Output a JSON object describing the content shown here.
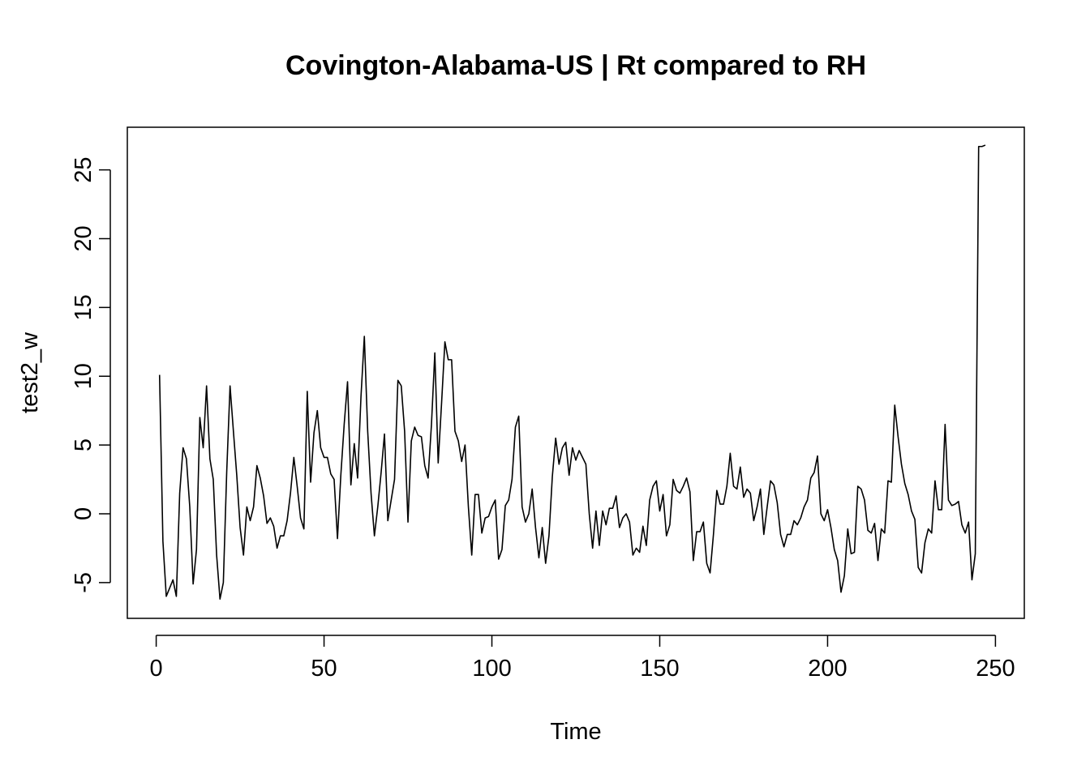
{
  "chart_data": {
    "type": "line",
    "title": "Covington-Alabama-US | Rt compared to RH",
    "xlabel": "Time",
    "ylabel": "test2_w",
    "xlim": [
      -8.6,
      258.6
    ],
    "ylim": [
      -7.6,
      28.1
    ],
    "x_ticks": [
      0,
      50,
      100,
      150,
      200,
      250
    ],
    "y_ticks": [
      -5,
      0,
      5,
      10,
      15,
      20,
      25
    ],
    "grid": false,
    "legend": "none",
    "line_color": "#000000",
    "series": [
      {
        "x_start": 1,
        "values": [
          10.1,
          -2.0,
          -6.0,
          -5.4,
          -4.8,
          -6.0,
          1.5,
          4.8,
          4.0,
          0.5,
          -5.1,
          -2.6,
          7.0,
          4.8,
          9.3,
          4.0,
          2.5,
          -3.0,
          -6.2,
          -5.0,
          3.0,
          9.3,
          6.0,
          2.8,
          -1.0,
          -3.0,
          0.5,
          -0.5,
          0.5,
          3.5,
          2.6,
          1.3,
          -0.7,
          -0.3,
          -0.9,
          -2.5,
          -1.6,
          -1.6,
          -0.5,
          1.5,
          4.1,
          2.0,
          -0.3,
          -1.1,
          8.9,
          2.3,
          5.9,
          7.5,
          4.8,
          4.1,
          4.1,
          2.9,
          2.5,
          -1.8,
          2.8,
          6.5,
          9.6,
          2.1,
          5.1,
          2.6,
          8.5,
          12.9,
          6.0,
          1.5,
          -1.6,
          0.5,
          3.0,
          5.8,
          -0.5,
          1.0,
          2.5,
          9.7,
          9.3,
          6.0,
          -0.6,
          5.3,
          6.3,
          5.7,
          5.6,
          3.5,
          2.6,
          6.5,
          11.7,
          3.7,
          8.0,
          12.5,
          11.2,
          11.2,
          6.0,
          5.3,
          3.8,
          5.0,
          0.5,
          -3.0,
          1.4,
          1.4,
          -1.4,
          -0.3,
          -0.2,
          0.5,
          1.0,
          -3.3,
          -2.6,
          0.6,
          1.0,
          2.5,
          6.3,
          7.1,
          0.5,
          -0.6,
          0.0,
          1.8,
          -1.0,
          -3.2,
          -1.0,
          -3.6,
          -1.6,
          2.7,
          5.5,
          3.6,
          4.8,
          5.2,
          2.8,
          4.8,
          3.9,
          4.6,
          4.1,
          3.6,
          0.0,
          -2.5,
          0.2,
          -2.3,
          0.2,
          -0.8,
          0.4,
          0.4,
          1.3,
          -1.0,
          -0.3,
          0.0,
          -0.6,
          -3.0,
          -2.5,
          -2.8,
          -0.9,
          -2.3,
          1.0,
          2.0,
          2.4,
          0.2,
          1.4,
          -1.6,
          -0.8,
          2.5,
          1.7,
          1.5,
          2.0,
          2.6,
          1.6,
          -3.4,
          -1.3,
          -1.3,
          -0.6,
          -3.6,
          -4.3,
          -1.5,
          1.7,
          0.7,
          0.7,
          2.0,
          4.4,
          2.0,
          1.8,
          3.4,
          1.2,
          1.8,
          1.5,
          -0.5,
          0.5,
          1.8,
          -1.5,
          0.5,
          2.4,
          2.1,
          0.8,
          -1.5,
          -2.4,
          -1.5,
          -1.5,
          -0.5,
          -0.8,
          -0.3,
          0.5,
          1.0,
          2.6,
          3.0,
          4.2,
          0.0,
          -0.5,
          0.3,
          -1.0,
          -2.6,
          -3.4,
          -5.7,
          -4.5,
          -1.1,
          -2.9,
          -2.8,
          2.0,
          1.8,
          1.0,
          -1.2,
          -1.4,
          -0.7,
          -3.4,
          -1.1,
          -1.4,
          2.4,
          2.3,
          7.9,
          5.6,
          3.6,
          2.2,
          1.4,
          0.2,
          -0.4,
          -3.9,
          -4.3,
          -2.1,
          -1.1,
          -1.4,
          2.4,
          0.3,
          0.3,
          6.5,
          1.0,
          0.6,
          0.7,
          0.9,
          -0.8,
          -1.4,
          -0.6,
          -4.8,
          -2.9,
          26.7,
          26.7,
          26.8
        ]
      }
    ]
  }
}
